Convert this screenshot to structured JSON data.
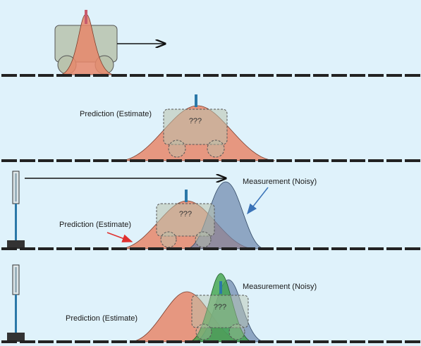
{
  "colors": {
    "background": "#dff2fb",
    "prediction": "#e8876a",
    "measurement": "#6b86ab",
    "fused": "#3fa34a",
    "car_body": "#b9c3ad",
    "pole": "#2b78a8",
    "red_arrow": "#e0312f",
    "blue_arrow": "#3a73b8"
  },
  "panels": [
    {
      "id": "initial"
    },
    {
      "id": "prediction",
      "car_label": "???",
      "prediction_label": "Prediction (Estimate)"
    },
    {
      "id": "measurement",
      "car_label": "???",
      "prediction_label": "Prediction (Estimate)",
      "measurement_label": "Measurement (Noisy)"
    },
    {
      "id": "fused",
      "car_label": "???",
      "prediction_label": "Prediction (Estimate)",
      "measurement_label": "Measurement (Noisy)"
    }
  ]
}
